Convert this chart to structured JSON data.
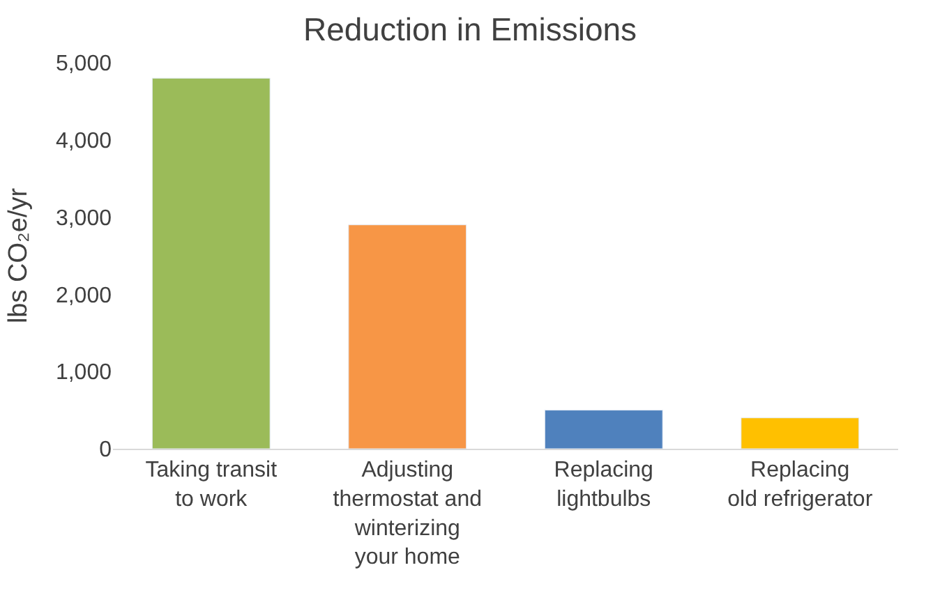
{
  "chart_data": {
    "type": "bar",
    "title": "Reduction in Emissions",
    "ylabel": "lbs CO₂e/yr",
    "categories": [
      "Taking transit\nto work",
      "Adjusting\nthermostat and\nwinterizing\nyour home",
      "Replacing\nlightbulbs",
      "Replacing\nold refrigerator"
    ],
    "values": [
      4800,
      2900,
      500,
      400
    ],
    "colors": [
      "#9bbb59",
      "#f79646",
      "#4f81bd",
      "#ffc000"
    ],
    "ylim": [
      0,
      5000
    ],
    "yticks": [
      {
        "value": 0,
        "label": "0"
      },
      {
        "value": 1000,
        "label": "1,000"
      },
      {
        "value": 2000,
        "label": "2,000"
      },
      {
        "value": 3000,
        "label": "3,000"
      },
      {
        "value": 4000,
        "label": "4,000"
      },
      {
        "value": 5000,
        "label": "5,000"
      }
    ],
    "grid": false
  }
}
